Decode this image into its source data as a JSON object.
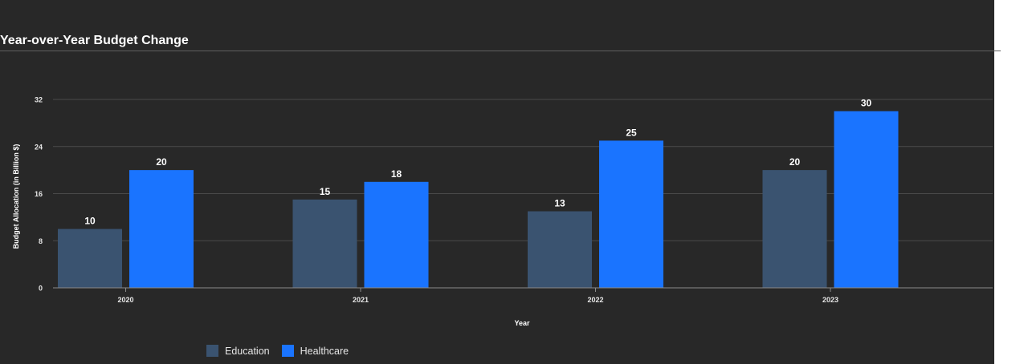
{
  "chart_data": {
    "type": "bar",
    "title": "Year-over-Year Budget Change",
    "xlabel": "Year",
    "ylabel": "Budget Allocation (in Billion $)",
    "categories": [
      "2020",
      "2021",
      "2022",
      "2023"
    ],
    "series": [
      {
        "name": "Education",
        "values": [
          10,
          15,
          13,
          20
        ],
        "color": "#3a5370"
      },
      {
        "name": "Healthcare",
        "values": [
          20,
          18,
          25,
          30
        ],
        "color": "#1a74ff"
      }
    ],
    "ylim": [
      0,
      32
    ],
    "yticks": [
      0,
      8,
      16,
      24,
      32
    ],
    "grid": true,
    "legend_position": "bottom-left"
  }
}
